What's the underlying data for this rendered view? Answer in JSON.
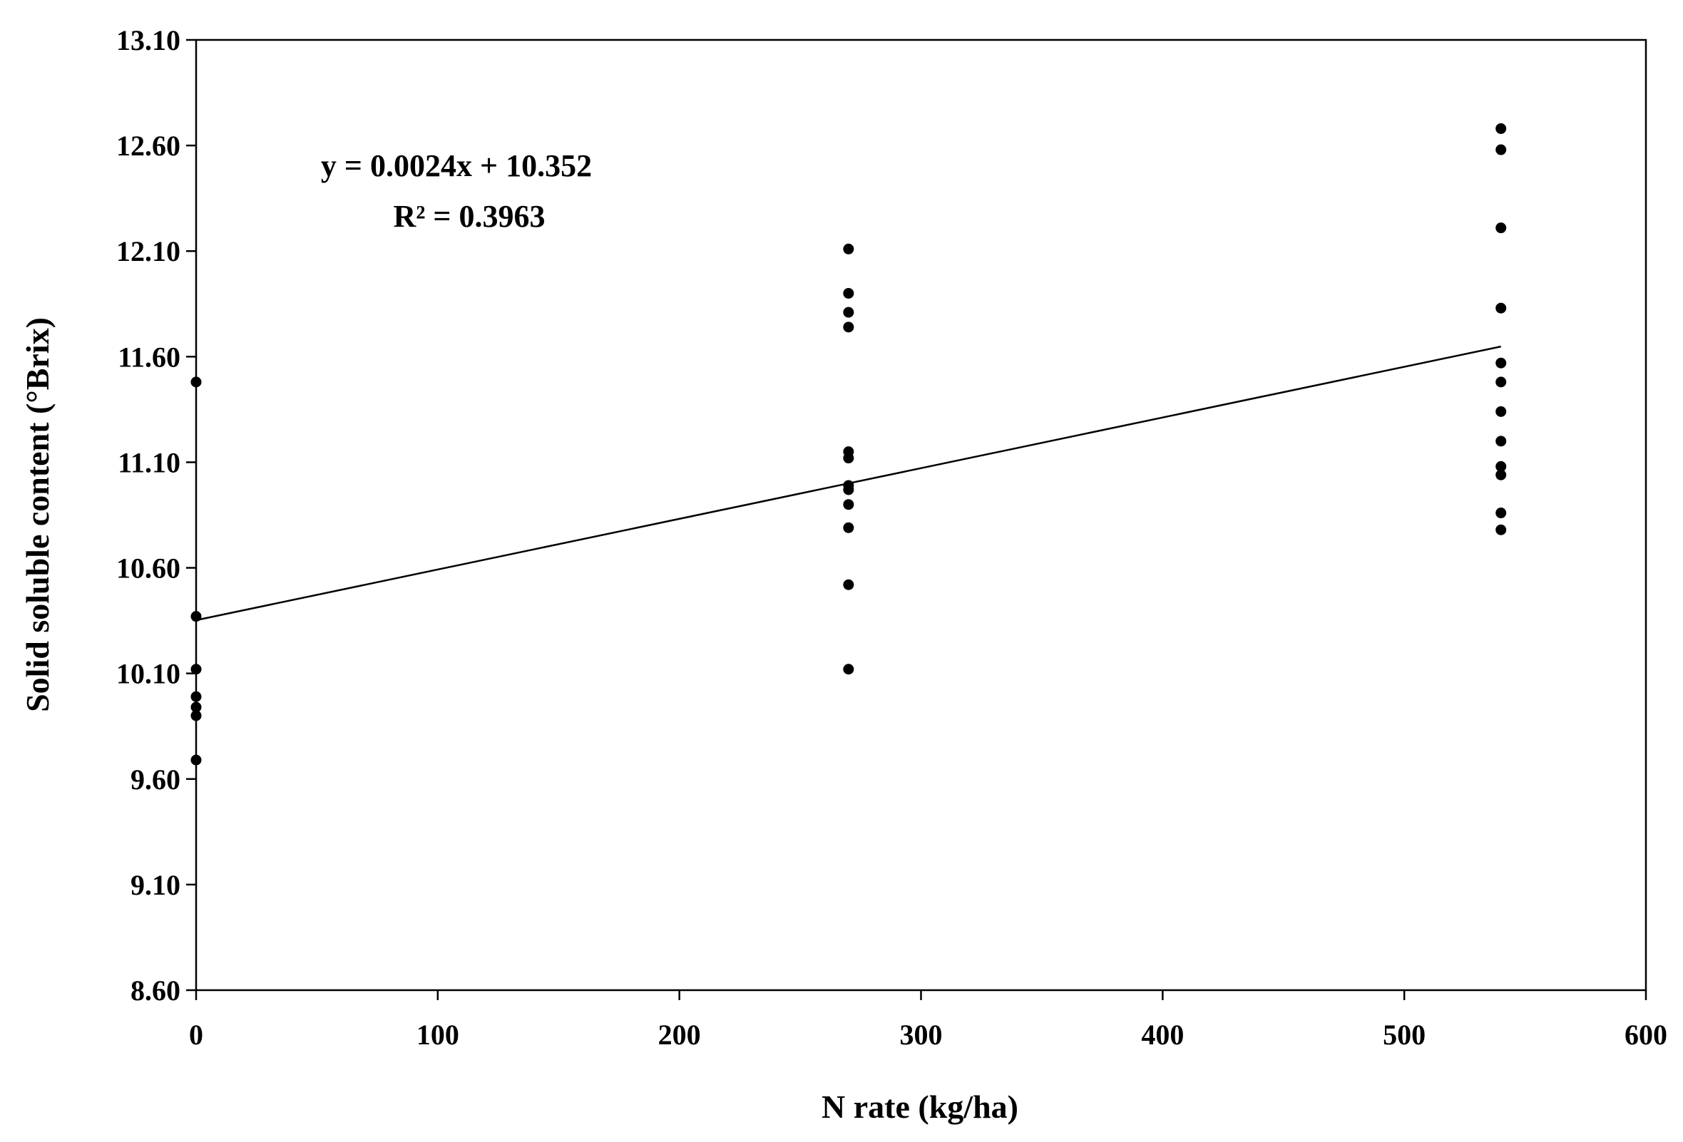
{
  "chart_data": {
    "type": "scatter",
    "title": "",
    "xlabel": "N rate (kg/ha)",
    "ylabel": "Solid soluble content (°Brix)",
    "xlim": [
      0,
      600
    ],
    "ylim": [
      8.6,
      13.1
    ],
    "x_ticks": [
      "0",
      "100",
      "200",
      "300",
      "400",
      "500",
      "600"
    ],
    "y_ticks": [
      "8.60",
      "9.10",
      "9.60",
      "10.10",
      "10.60",
      "11.10",
      "11.60",
      "12.10",
      "12.60",
      "13.10"
    ],
    "grid": false,
    "legend": "none",
    "colors": {
      "marker": "#000000",
      "line": "#000000",
      "background": "#ffffff"
    },
    "series": [
      {
        "points": [
          {
            "x": 0,
            "y": 11.48
          },
          {
            "x": 0,
            "y": 10.37
          },
          {
            "x": 0,
            "y": 10.12
          },
          {
            "x": 0,
            "y": 9.99
          },
          {
            "x": 0,
            "y": 9.94
          },
          {
            "x": 0,
            "y": 9.9
          },
          {
            "x": 0,
            "y": 9.69
          },
          {
            "x": 270,
            "y": 12.11
          },
          {
            "x": 270,
            "y": 11.9
          },
          {
            "x": 270,
            "y": 11.81
          },
          {
            "x": 270,
            "y": 11.74
          },
          {
            "x": 270,
            "y": 11.15
          },
          {
            "x": 270,
            "y": 11.12
          },
          {
            "x": 270,
            "y": 10.99
          },
          {
            "x": 270,
            "y": 10.97
          },
          {
            "x": 270,
            "y": 10.9
          },
          {
            "x": 270,
            "y": 10.79
          },
          {
            "x": 270,
            "y": 10.52
          },
          {
            "x": 270,
            "y": 10.12
          },
          {
            "x": 540,
            "y": 12.68
          },
          {
            "x": 540,
            "y": 12.58
          },
          {
            "x": 540,
            "y": 12.21
          },
          {
            "x": 540,
            "y": 11.83
          },
          {
            "x": 540,
            "y": 11.57
          },
          {
            "x": 540,
            "y": 11.48
          },
          {
            "x": 540,
            "y": 11.34
          },
          {
            "x": 540,
            "y": 11.2
          },
          {
            "x": 540,
            "y": 11.08
          },
          {
            "x": 540,
            "y": 11.04
          },
          {
            "x": 540,
            "y": 10.86
          },
          {
            "x": 540,
            "y": 10.78
          }
        ]
      }
    ],
    "trendline": {
      "type": "linear",
      "slope": 0.0024,
      "intercept": 10.352,
      "x_range": [
        0,
        540
      ],
      "equation": "y = 0.0024x + 10.352",
      "r2_label": "R² = 0.3963"
    }
  }
}
